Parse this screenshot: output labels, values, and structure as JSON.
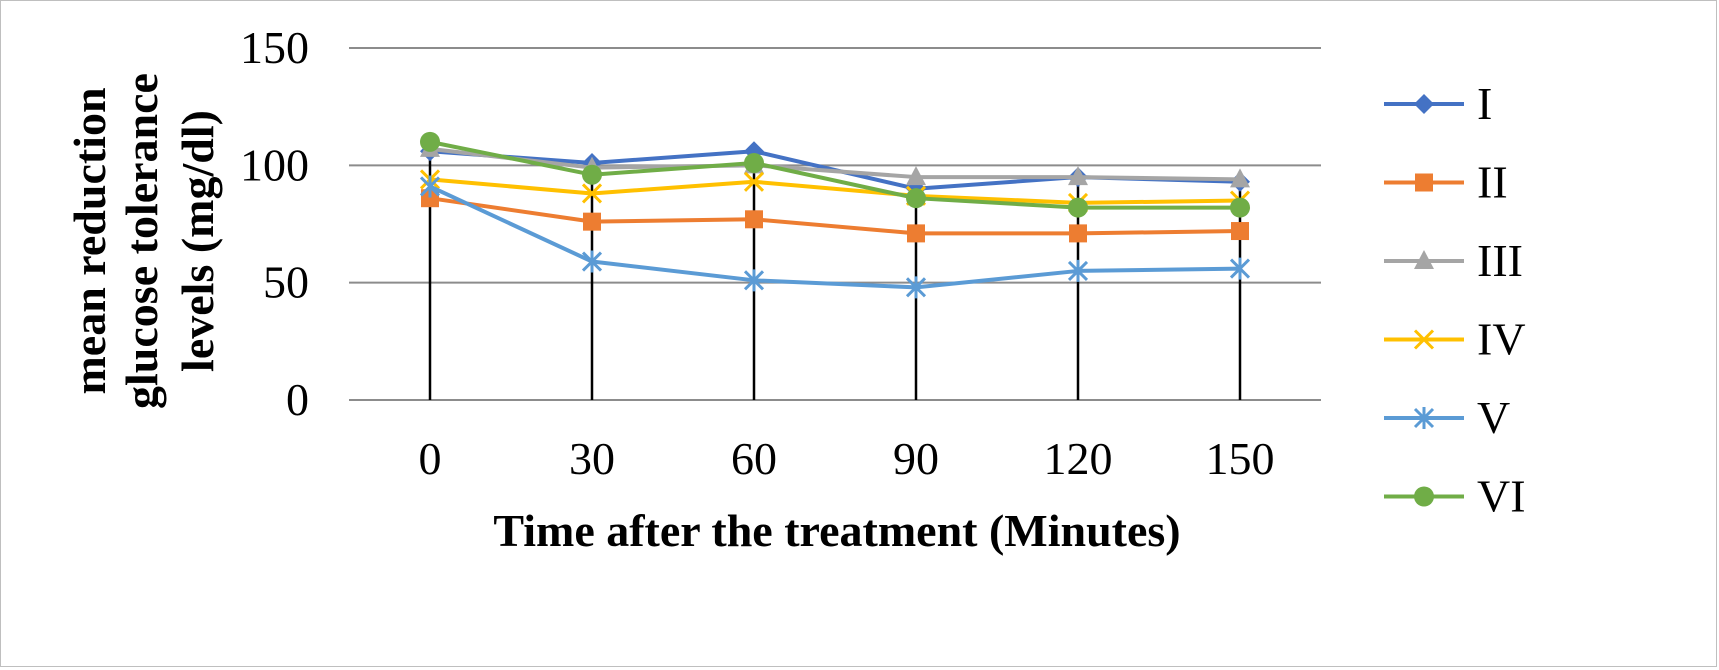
{
  "chart_data": {
    "type": "line",
    "title": "",
    "xlabel": "Time after the treatment  (Minutes)",
    "ylabel_lines": [
      "mean reduction",
      "glucose tolerance",
      "levels  (mg/dl)"
    ],
    "x": [
      0,
      30,
      60,
      90,
      120,
      150
    ],
    "x_tick_labels": [
      "0",
      "30",
      "60",
      "90",
      "120",
      "150"
    ],
    "y_ticks": [
      0,
      50,
      100,
      150
    ],
    "ylim": [
      0,
      150
    ],
    "grid": true,
    "drop_lines": true,
    "legend_position": "right",
    "series": [
      {
        "name": "I",
        "marker": "diamond",
        "color": "#4472C4",
        "values": [
          106,
          101,
          106,
          90,
          95,
          93
        ]
      },
      {
        "name": "II",
        "marker": "square",
        "color": "#ED7D31",
        "values": [
          86,
          76,
          77,
          71,
          71,
          72
        ]
      },
      {
        "name": "III",
        "marker": "triangle",
        "color": "#A5A5A5",
        "values": [
          107,
          99,
          100,
          95,
          95,
          94
        ]
      },
      {
        "name": "IV",
        "marker": "x",
        "color": "#FFC000",
        "values": [
          94,
          88,
          93,
          87,
          84,
          85
        ]
      },
      {
        "name": "V",
        "marker": "asterisk",
        "color": "#5B9BD5",
        "values": [
          91,
          59,
          51,
          48,
          55,
          56
        ]
      },
      {
        "name": "VI",
        "marker": "circle",
        "color": "#70AD47",
        "values": [
          110,
          96,
          101,
          86,
          82,
          82
        ]
      }
    ]
  }
}
